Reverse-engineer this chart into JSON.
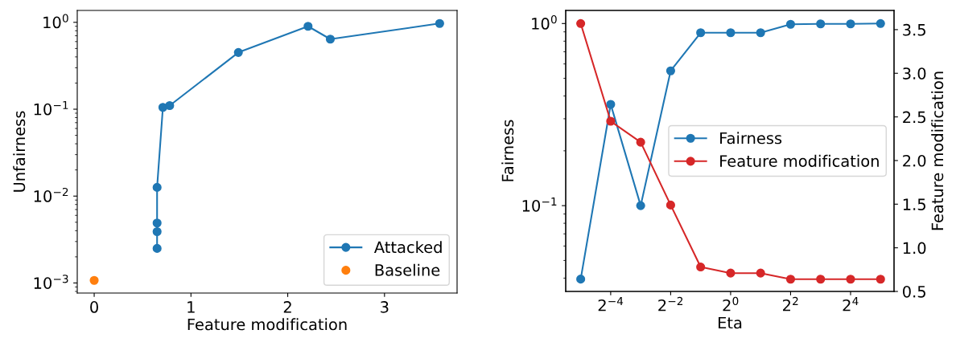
{
  "chart_data": [
    {
      "type": "line",
      "xlabel": "Feature modification",
      "ylabel": "Unfairness",
      "log": "y",
      "xlim": [
        -0.175,
        3.75
      ],
      "xticks": [
        0,
        1,
        2,
        3
      ],
      "ylim": [
        0.000766,
        1.37
      ],
      "yticks": [
        {
          "value": 0.001,
          "label": "10$^{−3}$"
        },
        {
          "value": 0.01,
          "label": "10$^{−2}$"
        },
        {
          "value": 0.1,
          "label": "10$^{−1}$"
        },
        {
          "value": 1,
          "label": "10$^{0}$"
        }
      ],
      "grid": false,
      "legend": "bottom right",
      "marker": "circle",
      "line_style": "solid",
      "series": [
        {
          "name": "Attacked",
          "color": "#1f77b4",
          "x": [
            0.65,
            0.65,
            0.65,
            0.65,
            0.71,
            0.78,
            1.49,
            2.21,
            2.44,
            3.57
          ],
          "values": [
            0.0025,
            0.0039,
            0.0049,
            0.0126,
            0.105,
            0.11,
            0.45,
            0.9,
            0.64,
            0.97
          ]
        },
        {
          "name": "Baseline",
          "color": "#ff7f0e",
          "type": "scatter",
          "x": [
            0
          ],
          "values": [
            0.00107
          ]
        }
      ]
    },
    {
      "type": "line",
      "xlabel": "Eta",
      "ylabel": "Fairness",
      "y2label": "Feature modification",
      "log": "xy",
      "xlim": [
        0.0221,
        43.7
      ],
      "xticks": [
        {
          "value": 0.0625,
          "label": "2$^{−4}$"
        },
        {
          "value": 0.25,
          "label": "2$^{−2}$"
        },
        {
          "value": 1,
          "label": "2$^{0}$"
        },
        {
          "value": 4,
          "label": "2$^{2}$"
        },
        {
          "value": 16,
          "label": "2$^{4}$"
        }
      ],
      "ylim": [
        0.0338,
        1.18
      ],
      "yticks": [
        {
          "value": 0.1,
          "label": "10$^{−1}$"
        },
        {
          "value": 1,
          "label": "10$^{0}$"
        }
      ],
      "y2lim": [
        0.5,
        3.72
      ],
      "y2ticks": [
        0.5,
        {
          "value": 1,
          "label": "1.0"
        },
        1.5,
        {
          "value": 2,
          "label": "2.0"
        },
        2.5,
        {
          "value": 3,
          "label": "3.0"
        },
        3.5
      ],
      "grid": false,
      "legend": "right",
      "marker": "circle",
      "line_style": "solid",
      "x": [
        0.03125,
        0.0625,
        0.125,
        0.25,
        0.5,
        1,
        2,
        4,
        8,
        16,
        32
      ],
      "series": [
        {
          "name": "Fairness",
          "color": "#1f77b4",
          "values": [
            0.0395,
            0.36,
            0.1,
            0.55,
            0.89,
            0.89,
            0.89,
            0.99,
            0.995,
            0.995,
            1.0
          ]
        },
        {
          "name": "Feature modification",
          "color": "#d62728",
          "axis": "y2",
          "values": [
            3.57,
            2.45,
            2.21,
            1.49,
            0.78,
            0.71,
            0.71,
            0.64,
            0.64,
            0.64,
            0.64
          ]
        }
      ]
    }
  ]
}
